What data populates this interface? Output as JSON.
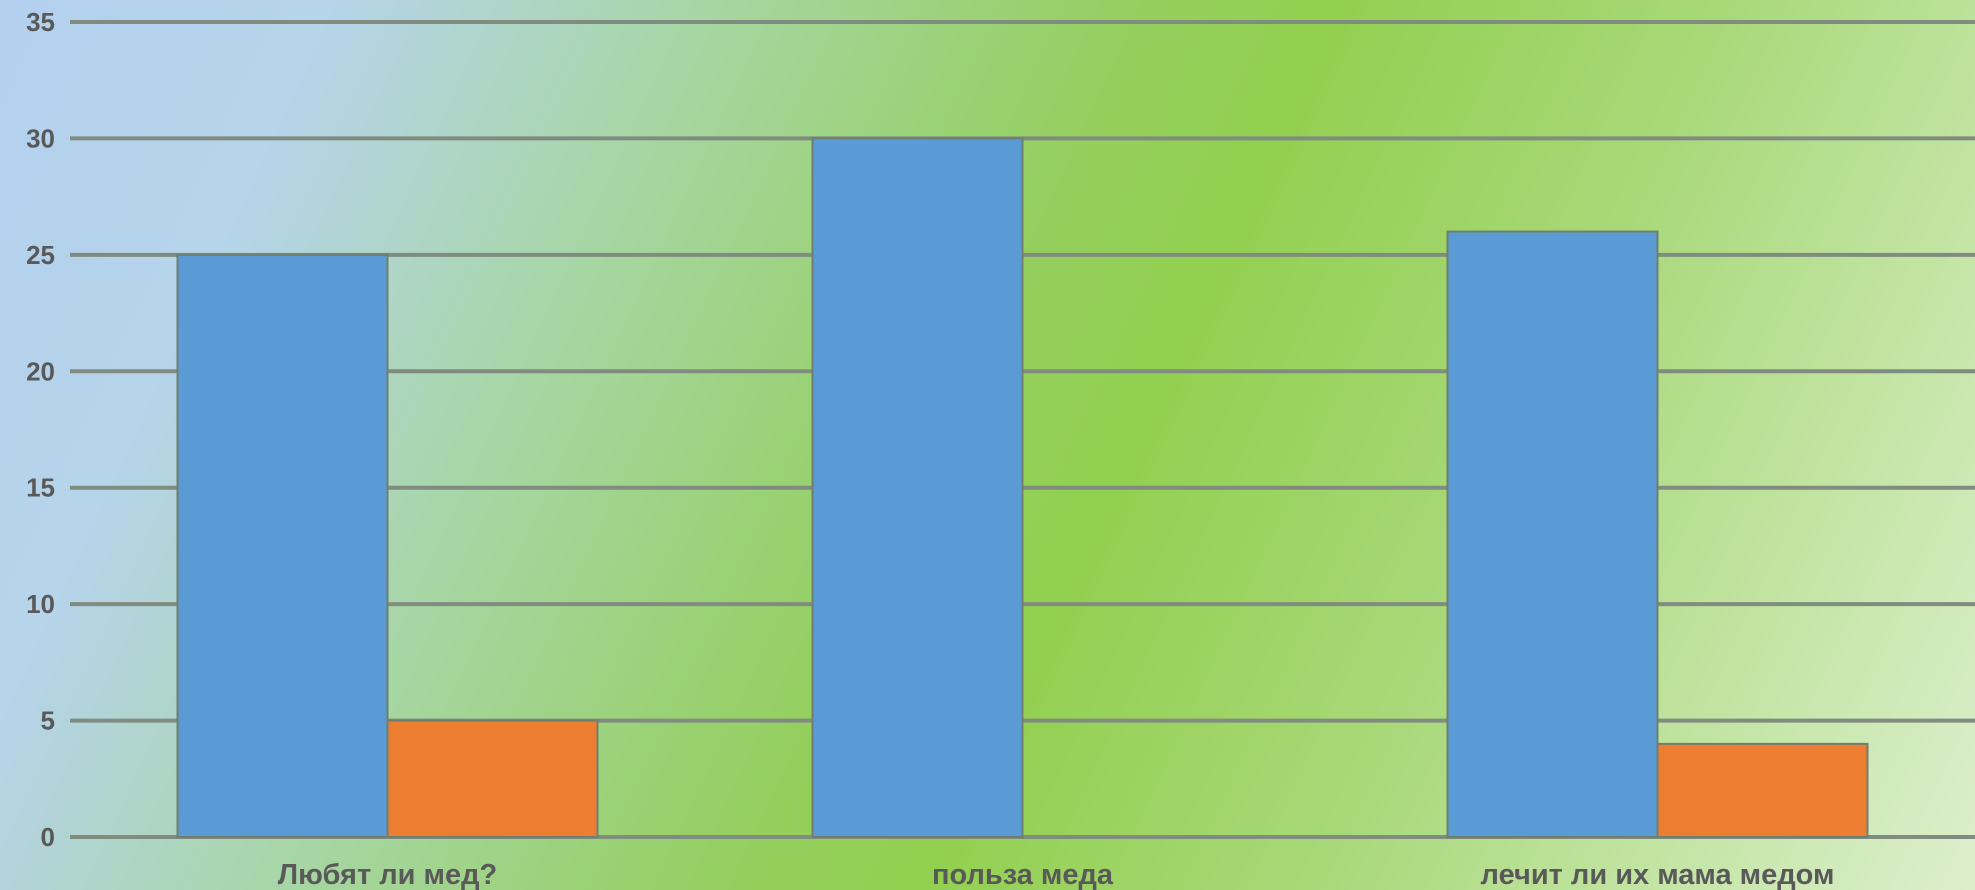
{
  "chart_data": {
    "type": "bar",
    "title": "",
    "xlabel": "",
    "ylabel": "",
    "categories": [
      "Любят ли мед?",
      "польза меда",
      "лечит ли их мама медом"
    ],
    "series": [
      {
        "values": [
          25,
          30,
          26
        ],
        "color": "#5b9bd5"
      },
      {
        "values": [
          5,
          0,
          4
        ],
        "color": "#ed7d31"
      }
    ],
    "ylim": [
      0,
      35
    ],
    "yticks": [
      0,
      5,
      10,
      15,
      20,
      25,
      30,
      35
    ],
    "grid": true,
    "legend": "none"
  }
}
